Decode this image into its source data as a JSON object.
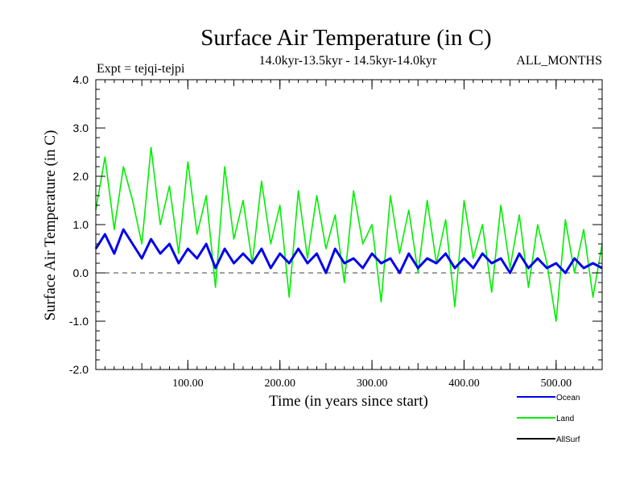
{
  "chart_data": {
    "type": "line",
    "title": "Surface Air Temperature (in C)",
    "subtitle": "14.0kyr-13.5kyr - 14.5kyr-14.0kyr",
    "expt_label": "Expt = tejqi-tejpi",
    "months_label": "ALL_MONTHS",
    "xlabel": "Time (in years since start)",
    "ylabel": "Surface Air Temperature (in C)",
    "xlim": [
      0,
      550
    ],
    "ylim": [
      -2.0,
      4.0
    ],
    "x_ticks": [
      100,
      200,
      300,
      400,
      500
    ],
    "x_tick_labels": [
      "100.00",
      "200.00",
      "300.00",
      "400.00",
      "500.00"
    ],
    "y_ticks": [
      -2,
      -1,
      0,
      1,
      2,
      3,
      4
    ],
    "y_tick_labels": [
      "-2.0",
      "-1.0",
      "0.0",
      "1.0",
      "2.0",
      "3.0",
      "4.0"
    ],
    "zero_line": "dashed",
    "series": [
      {
        "name": "Land",
        "color": "#00ee00",
        "x": [
          0,
          10,
          20,
          30,
          40,
          50,
          60,
          70,
          80,
          90,
          100,
          110,
          120,
          130,
          140,
          150,
          160,
          170,
          180,
          190,
          200,
          210,
          220,
          230,
          240,
          250,
          260,
          270,
          280,
          290,
          300,
          310,
          320,
          330,
          340,
          350,
          360,
          370,
          380,
          390,
          400,
          410,
          420,
          430,
          440,
          450,
          460,
          470,
          480,
          490,
          500,
          510,
          520,
          530,
          540,
          550
        ],
        "values": [
          1.3,
          2.4,
          0.9,
          2.2,
          1.5,
          0.6,
          2.6,
          1.0,
          1.8,
          0.4,
          2.3,
          0.8,
          1.6,
          -0.3,
          2.2,
          0.7,
          1.5,
          0.2,
          1.9,
          0.6,
          1.4,
          -0.5,
          1.7,
          0.3,
          1.6,
          0.5,
          1.2,
          -0.2,
          1.7,
          0.6,
          1.0,
          -0.6,
          1.6,
          0.4,
          1.3,
          0.0,
          1.5,
          0.2,
          1.1,
          -0.7,
          1.5,
          0.3,
          1.0,
          -0.4,
          1.4,
          0.1,
          1.2,
          -0.3,
          1.0,
          0.2,
          -1.0,
          1.1,
          0.0,
          0.9,
          -0.5,
          0.6
        ]
      },
      {
        "name": "Ocean",
        "color": "#0000ee",
        "x": [
          0,
          10,
          20,
          30,
          40,
          50,
          60,
          70,
          80,
          90,
          100,
          110,
          120,
          130,
          140,
          150,
          160,
          170,
          180,
          190,
          200,
          210,
          220,
          230,
          240,
          250,
          260,
          270,
          280,
          290,
          300,
          310,
          320,
          330,
          340,
          350,
          360,
          370,
          380,
          390,
          400,
          410,
          420,
          430,
          440,
          450,
          460,
          470,
          480,
          490,
          500,
          510,
          520,
          530,
          540,
          550
        ],
        "values": [
          0.5,
          0.8,
          0.4,
          0.9,
          0.6,
          0.3,
          0.7,
          0.4,
          0.6,
          0.2,
          0.5,
          0.3,
          0.6,
          0.1,
          0.5,
          0.2,
          0.4,
          0.2,
          0.5,
          0.1,
          0.4,
          0.2,
          0.5,
          0.2,
          0.4,
          0.0,
          0.5,
          0.2,
          0.3,
          0.1,
          0.4,
          0.2,
          0.3,
          0.0,
          0.4,
          0.1,
          0.3,
          0.2,
          0.4,
          0.1,
          0.3,
          0.1,
          0.4,
          0.2,
          0.3,
          0.0,
          0.4,
          0.1,
          0.3,
          0.1,
          0.2,
          0.0,
          0.3,
          0.1,
          0.2,
          0.1
        ]
      },
      {
        "name": "AllSurf",
        "color": "#000000",
        "x": [],
        "values": []
      }
    ]
  }
}
